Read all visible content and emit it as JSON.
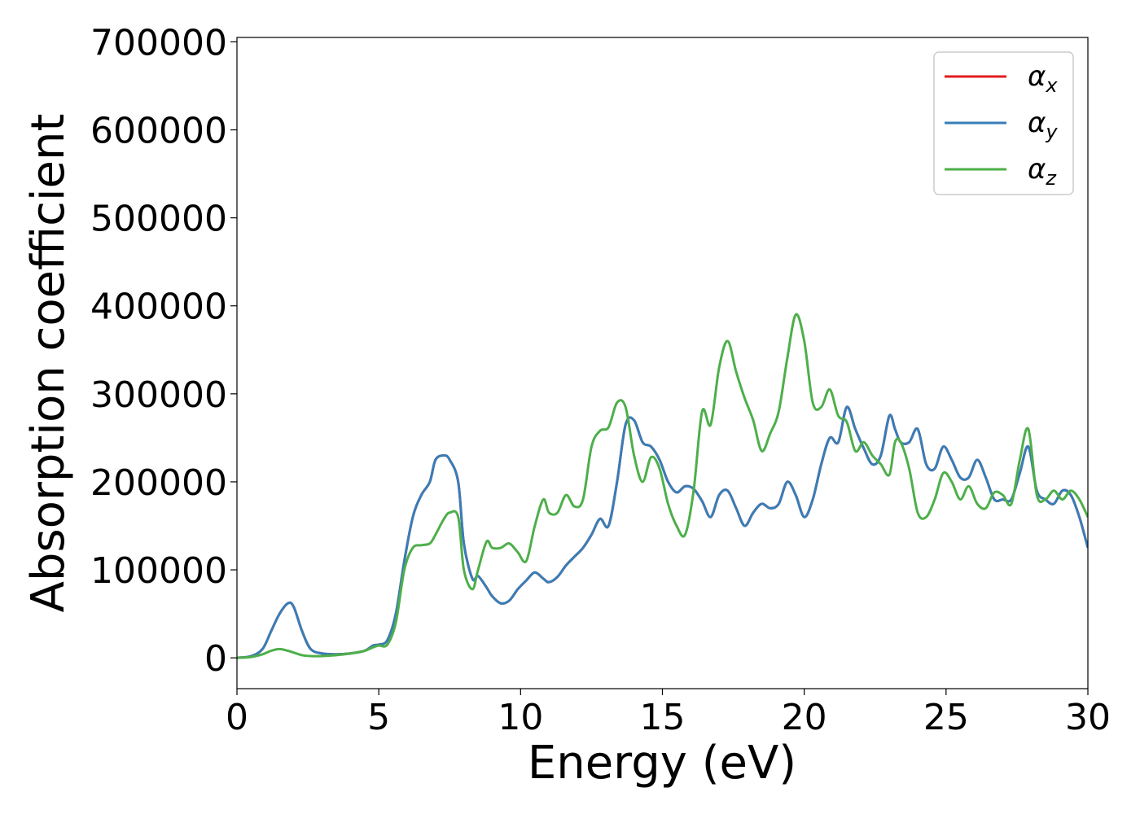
{
  "chart_data": {
    "type": "line",
    "xlabel": "Energy (eV)",
    "ylabel": "Absorption coefficient",
    "xlim": [
      0,
      30
    ],
    "ylim": [
      -35000,
      705000
    ],
    "xticks": [
      0,
      5,
      10,
      15,
      20,
      25,
      30
    ],
    "xtick_labels": [
      "0",
      "5",
      "10",
      "15",
      "20",
      "25",
      "30"
    ],
    "yticks": [
      0,
      100000,
      200000,
      300000,
      400000,
      500000,
      600000,
      700000
    ],
    "ytick_labels": [
      "0",
      "100000",
      "200000",
      "300000",
      "400000",
      "500000",
      "600000",
      "700000"
    ],
    "grid": false,
    "legend_position": "top-right",
    "series": [
      {
        "name": "α_x",
        "legend_symbol": "α",
        "legend_subscript": "x",
        "color": "#e41a1c",
        "x": [
          0,
          0.5,
          0.9,
          1.2,
          1.5,
          1.8,
          2.0,
          2.3,
          2.6,
          3.0,
          3.5,
          4.0,
          4.5,
          4.8,
          5.0,
          5.3,
          5.6,
          5.9,
          6.2,
          6.5,
          6.8,
          7.0,
          7.3,
          7.5,
          7.8,
          8.0,
          8.3,
          8.5,
          8.8,
          9.0,
          9.3,
          9.6,
          9.9,
          10.2,
          10.5,
          10.8,
          11.0,
          11.3,
          11.6,
          11.9,
          12.2,
          12.5,
          12.8,
          13.1,
          13.4,
          13.7,
          14.0,
          14.3,
          14.6,
          14.9,
          15.2,
          15.5,
          15.8,
          16.1,
          16.4,
          16.7,
          17.0,
          17.3,
          17.6,
          17.9,
          18.2,
          18.5,
          18.8,
          19.1,
          19.4,
          19.7,
          20.0,
          20.3,
          20.6,
          20.9,
          21.2,
          21.5,
          21.8,
          22.1,
          22.4,
          22.7,
          23.0,
          23.2,
          23.4,
          23.7,
          24.0,
          24.3,
          24.6,
          24.9,
          25.2,
          25.5,
          25.8,
          26.1,
          26.4,
          26.7,
          27.0,
          27.3,
          27.6,
          27.9,
          28.2,
          28.5,
          28.8,
          29.1,
          29.4,
          29.7,
          30.0
        ],
        "y": [
          0,
          2000,
          10000,
          30000,
          50000,
          62000,
          58000,
          30000,
          10000,
          5000,
          4000,
          5000,
          8000,
          14000,
          15000,
          20000,
          50000,
          110000,
          160000,
          185000,
          200000,
          225000,
          230000,
          225000,
          200000,
          130000,
          90000,
          93000,
          80000,
          70000,
          62000,
          65000,
          78000,
          88000,
          97000,
          90000,
          86000,
          92000,
          105000,
          115000,
          125000,
          140000,
          158000,
          150000,
          200000,
          265000,
          270000,
          245000,
          240000,
          225000,
          200000,
          188000,
          195000,
          192000,
          178000,
          160000,
          185000,
          190000,
          170000,
          150000,
          165000,
          175000,
          170000,
          175000,
          200000,
          185000,
          160000,
          180000,
          220000,
          250000,
          245000,
          285000,
          260000,
          238000,
          220000,
          230000,
          275000,
          260000,
          245000,
          245000,
          260000,
          220000,
          215000,
          240000,
          225000,
          205000,
          205000,
          225000,
          205000,
          180000,
          180000,
          180000,
          210000,
          240000,
          190000,
          180000,
          175000,
          190000,
          185000,
          160000,
          125000
        ]
      },
      {
        "name": "α_y",
        "legend_symbol": "α",
        "legend_subscript": "y",
        "color": "#377eb8",
        "x": [
          0,
          0.5,
          0.9,
          1.2,
          1.5,
          1.8,
          2.0,
          2.3,
          2.6,
          3.0,
          3.5,
          4.0,
          4.5,
          4.8,
          5.0,
          5.3,
          5.6,
          5.9,
          6.2,
          6.5,
          6.8,
          7.0,
          7.3,
          7.5,
          7.8,
          8.0,
          8.3,
          8.5,
          8.8,
          9.0,
          9.3,
          9.6,
          9.9,
          10.2,
          10.5,
          10.8,
          11.0,
          11.3,
          11.6,
          11.9,
          12.2,
          12.5,
          12.8,
          13.1,
          13.4,
          13.7,
          14.0,
          14.3,
          14.6,
          14.9,
          15.2,
          15.5,
          15.8,
          16.1,
          16.4,
          16.7,
          17.0,
          17.3,
          17.6,
          17.9,
          18.2,
          18.5,
          18.8,
          19.1,
          19.4,
          19.7,
          20.0,
          20.3,
          20.6,
          20.9,
          21.2,
          21.5,
          21.8,
          22.1,
          22.4,
          22.7,
          23.0,
          23.2,
          23.4,
          23.7,
          24.0,
          24.3,
          24.6,
          24.9,
          25.2,
          25.5,
          25.8,
          26.1,
          26.4,
          26.7,
          27.0,
          27.3,
          27.6,
          27.9,
          28.2,
          28.5,
          28.8,
          29.1,
          29.4,
          29.7,
          30.0
        ],
        "y": [
          0,
          2000,
          10000,
          30000,
          50000,
          62000,
          58000,
          30000,
          10000,
          5000,
          4000,
          5000,
          8000,
          14000,
          15000,
          20000,
          50000,
          110000,
          160000,
          185000,
          200000,
          225000,
          230000,
          225000,
          200000,
          130000,
          90000,
          93000,
          80000,
          70000,
          62000,
          65000,
          78000,
          88000,
          97000,
          90000,
          86000,
          92000,
          105000,
          115000,
          125000,
          140000,
          158000,
          150000,
          200000,
          265000,
          270000,
          245000,
          240000,
          225000,
          200000,
          188000,
          195000,
          192000,
          178000,
          160000,
          185000,
          190000,
          170000,
          150000,
          165000,
          175000,
          170000,
          175000,
          200000,
          185000,
          160000,
          180000,
          220000,
          250000,
          245000,
          285000,
          260000,
          238000,
          220000,
          230000,
          275000,
          260000,
          245000,
          245000,
          260000,
          220000,
          215000,
          240000,
          225000,
          205000,
          205000,
          225000,
          205000,
          180000,
          180000,
          180000,
          210000,
          240000,
          190000,
          180000,
          175000,
          190000,
          185000,
          160000,
          125000
        ]
      },
      {
        "name": "α_z",
        "legend_symbol": "α",
        "legend_subscript": "z",
        "color": "#4daf4a",
        "x": [
          0,
          0.5,
          0.9,
          1.2,
          1.5,
          1.8,
          2.0,
          2.3,
          2.6,
          3.0,
          3.5,
          4.0,
          4.5,
          4.8,
          5.0,
          5.3,
          5.6,
          5.9,
          6.2,
          6.5,
          6.8,
          7.0,
          7.3,
          7.5,
          7.8,
          8.0,
          8.3,
          8.5,
          8.8,
          9.0,
          9.3,
          9.6,
          9.9,
          10.2,
          10.5,
          10.8,
          11.0,
          11.3,
          11.6,
          11.9,
          12.2,
          12.5,
          12.8,
          13.1,
          13.4,
          13.7,
          14.0,
          14.3,
          14.6,
          14.9,
          15.2,
          15.5,
          15.8,
          16.1,
          16.4,
          16.7,
          17.0,
          17.3,
          17.6,
          17.9,
          18.2,
          18.5,
          18.8,
          19.1,
          19.4,
          19.7,
          20.0,
          20.3,
          20.6,
          20.9,
          21.2,
          21.5,
          21.8,
          22.1,
          22.4,
          22.7,
          23.0,
          23.2,
          23.4,
          23.7,
          24.0,
          24.3,
          24.6,
          24.9,
          25.2,
          25.5,
          25.8,
          26.1,
          26.4,
          26.7,
          27.0,
          27.3,
          27.6,
          27.9,
          28.2,
          28.5,
          28.8,
          29.1,
          29.4,
          29.7,
          30.0
        ],
        "y": [
          0,
          1000,
          4000,
          8000,
          10000,
          8000,
          6000,
          3000,
          2000,
          2000,
          3000,
          5000,
          8000,
          12000,
          14000,
          15000,
          40000,
          100000,
          125000,
          128000,
          130000,
          140000,
          158000,
          165000,
          160000,
          100000,
          78000,
          100000,
          132000,
          125000,
          125000,
          130000,
          120000,
          110000,
          150000,
          180000,
          165000,
          165000,
          185000,
          172000,
          180000,
          240000,
          258000,
          262000,
          290000,
          285000,
          230000,
          200000,
          228000,
          215000,
          175000,
          150000,
          140000,
          190000,
          280000,
          265000,
          330000,
          360000,
          325000,
          295000,
          270000,
          235000,
          255000,
          280000,
          340000,
          390000,
          360000,
          290000,
          285000,
          305000,
          275000,
          268000,
          235000,
          245000,
          230000,
          220000,
          208000,
          245000,
          245000,
          215000,
          165000,
          160000,
          180000,
          210000,
          200000,
          180000,
          195000,
          175000,
          170000,
          188000,
          185000,
          175000,
          225000,
          260000,
          185000,
          180000,
          190000,
          180000,
          190000,
          180000,
          160000
        ]
      }
    ]
  }
}
